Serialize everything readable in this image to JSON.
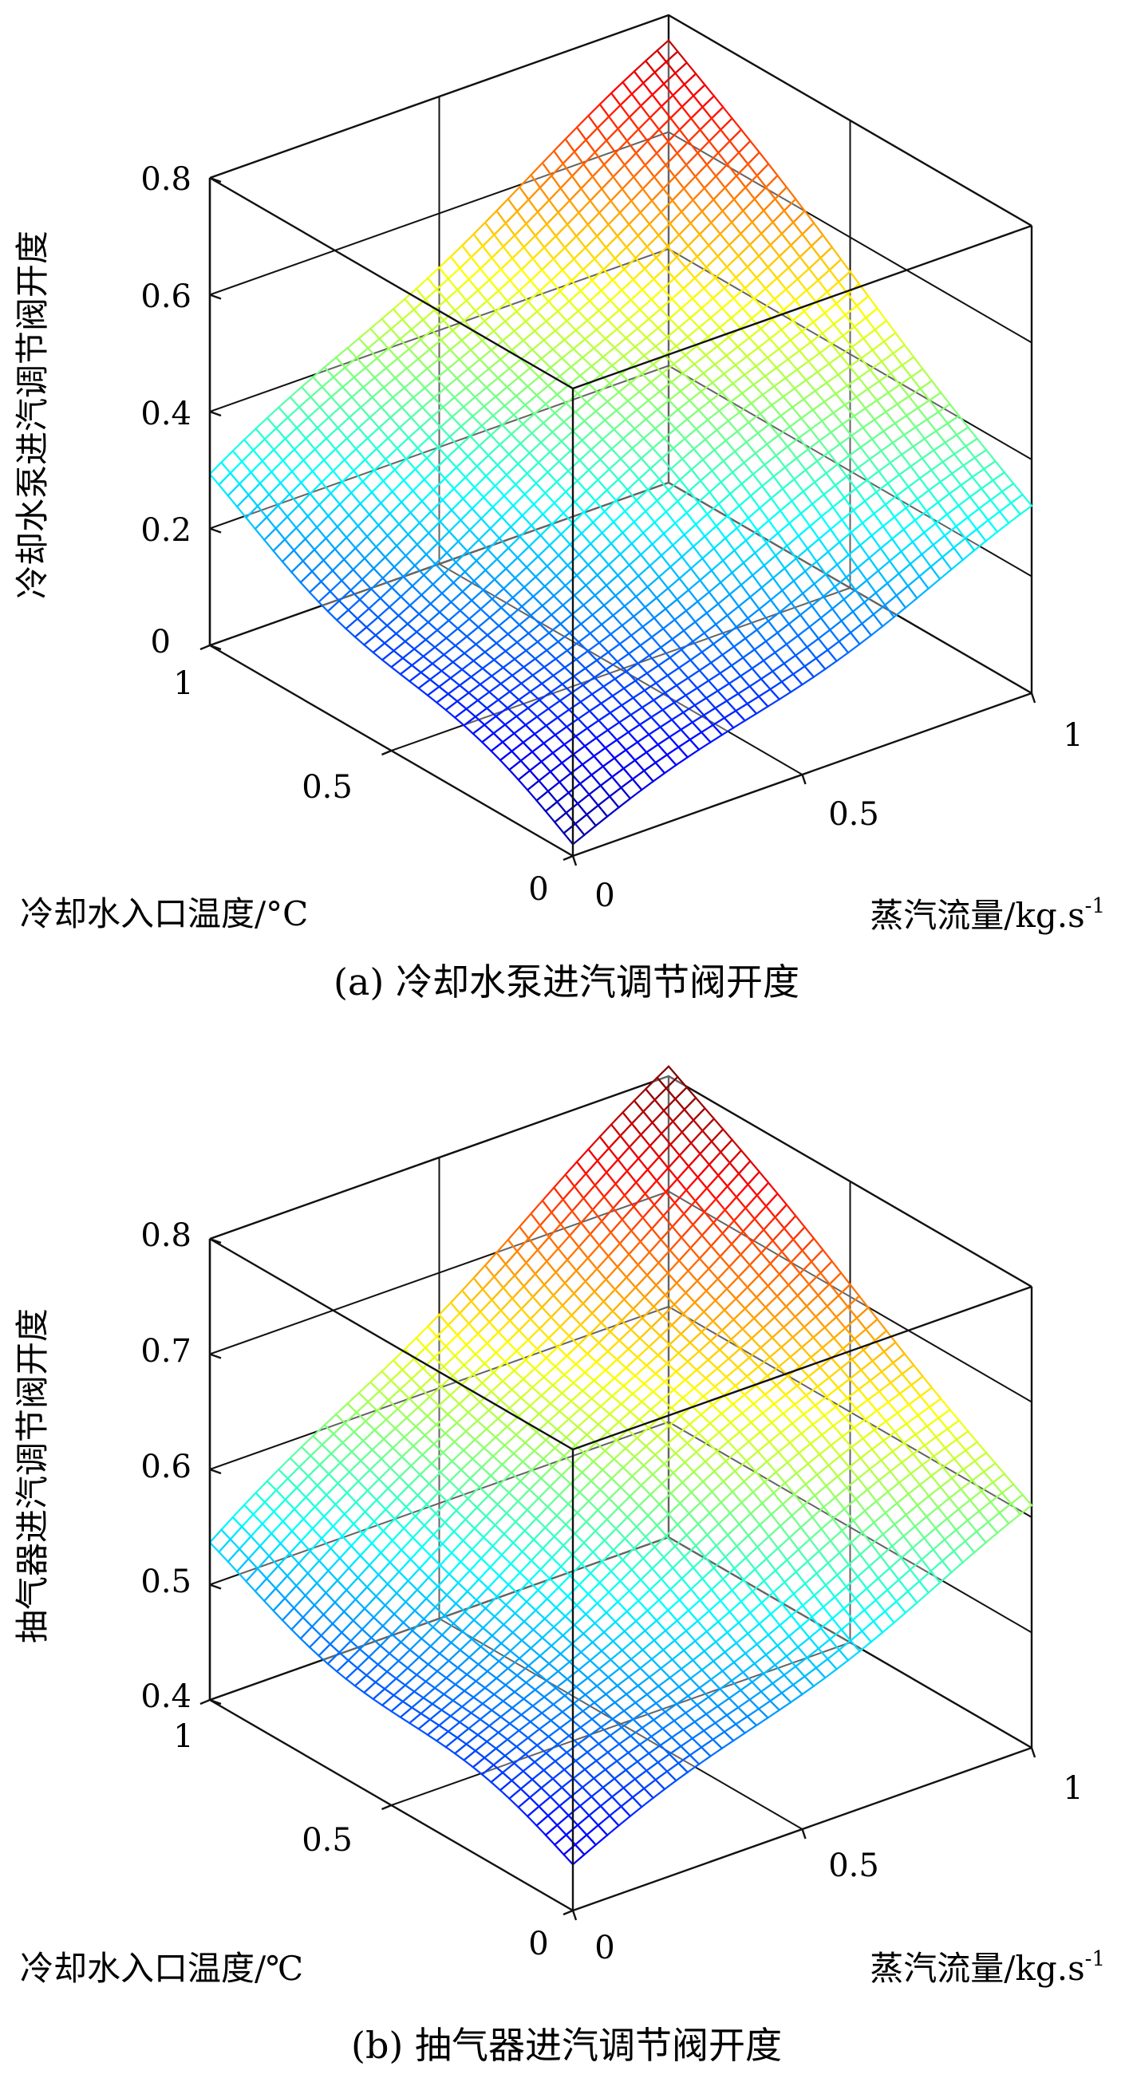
{
  "chart_data": [
    {
      "type": "surface",
      "panel_caption": "(a) 冷却水泵进汽调节阀开度",
      "zlabel": "冷却水泵进汽调节阀开度",
      "xlabel": "冷却水入口温度/°C",
      "ylabel": "蒸汽流量/kg.s",
      "ylabel_exponent": "-1",
      "xlim": [
        0,
        1
      ],
      "ylim": [
        0,
        1
      ],
      "zlim": [
        0,
        0.8
      ],
      "x_ticks": [
        "0",
        "0.5",
        "1"
      ],
      "y_ticks": [
        "0",
        "0.5",
        "1"
      ],
      "z_ticks": [
        "0",
        "0.2",
        "0.4",
        "0.6",
        "0.8"
      ],
      "z_tick_values": [
        0,
        0.2,
        0.4,
        0.6,
        0.8
      ],
      "corner_values": {
        "x0_y0": 0.02,
        "x1_y0": 0.28,
        "x0_y1": 0.32,
        "x1_y1": 0.76
      },
      "colormap": "jet",
      "grid": true
    },
    {
      "type": "surface",
      "panel_caption": "(b) 抽气器进汽调节阀开度",
      "zlabel": "抽气器进汽调节阀开度",
      "xlabel": "冷却水入口温度/℃",
      "ylabel": "蒸汽流量/kg.s",
      "ylabel_exponent": "-1",
      "xlim": [
        0,
        1
      ],
      "ylim": [
        0,
        1
      ],
      "zlim": [
        0.4,
        0.8
      ],
      "x_ticks": [
        "0",
        "0.5",
        "1"
      ],
      "y_ticks": [
        "0",
        "0.5",
        "1"
      ],
      "z_ticks": [
        "0.4",
        "0.5",
        "0.6",
        "0.7",
        "0.8"
      ],
      "z_tick_values": [
        0.4,
        0.5,
        0.6,
        0.7,
        0.8
      ],
      "corner_values": {
        "x0_y0": 0.44,
        "x1_y0": 0.53,
        "x0_y1": 0.61,
        "x1_y1": 0.81
      },
      "colormap": "jet",
      "grid": true
    }
  ]
}
